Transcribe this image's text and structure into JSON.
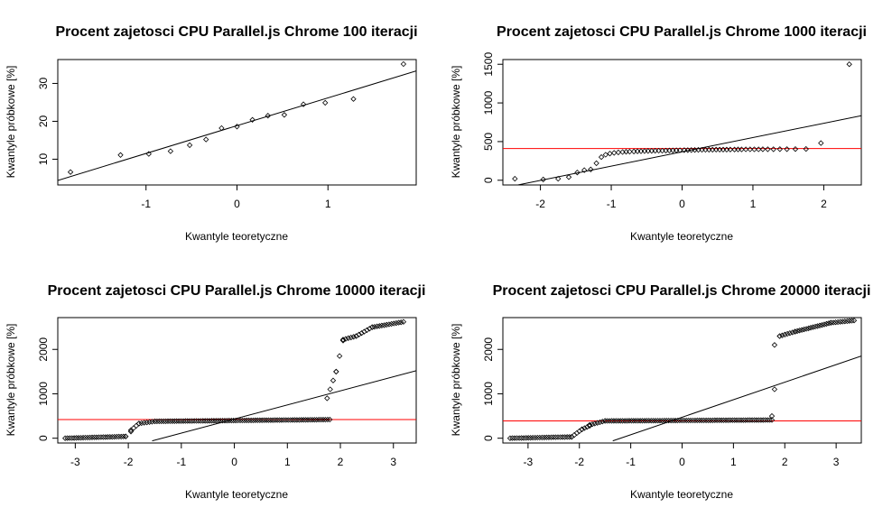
{
  "chart_data": [
    {
      "type": "scatter",
      "title": "Procent zajetosci CPU Parallel.js Chrome  100 iteracji",
      "xlabel": "Kwantyle teoretyczne",
      "ylabel": "Kwantyle próbkowe [%]",
      "xlim": [
        -1.97,
        1.97
      ],
      "ylim": [
        3.2,
        36.3
      ],
      "xticks": [
        -1,
        0,
        1
      ],
      "yticks": [
        10,
        20,
        30
      ],
      "grid": false,
      "points": [
        [
          -1.83,
          6.6
        ],
        [
          -1.28,
          11.1
        ],
        [
          -0.97,
          11.4
        ],
        [
          -0.73,
          12.1
        ],
        [
          -0.52,
          13.7
        ],
        [
          -0.34,
          15.2
        ],
        [
          -0.17,
          18.2
        ],
        [
          0.0,
          18.6
        ],
        [
          0.17,
          20.4
        ],
        [
          0.34,
          21.5
        ],
        [
          0.52,
          21.7
        ],
        [
          0.73,
          24.5
        ],
        [
          0.97,
          24.9
        ],
        [
          1.28,
          25.9
        ],
        [
          1.83,
          35.1
        ]
      ],
      "qq_line": {
        "color": "#000000",
        "points": [
          [
            -1.97,
            4.4
          ],
          [
            1.97,
            33.3
          ]
        ]
      },
      "hline": null
    },
    {
      "type": "scatter",
      "title": "Procent zajetosci CPU Parallel.js Chrome  1000 iteracji",
      "xlabel": "Kwantyle teoretyczne",
      "ylabel": "Kwantyle próbkowe [%]",
      "xlim": [
        -2.53,
        2.53
      ],
      "ylim": [
        -61,
        1561
      ],
      "xticks": [
        -2,
        -1,
        0,
        1,
        2
      ],
      "yticks": [
        0,
        500,
        1000,
        1500
      ],
      "grid": false,
      "points": [
        [
          -2.36,
          20
        ],
        [
          -1.96,
          10
        ],
        [
          -1.75,
          20
        ],
        [
          -1.6,
          40
        ],
        [
          -1.48,
          100
        ],
        [
          -1.38,
          130
        ],
        [
          -1.29,
          140
        ],
        [
          -1.21,
          220
        ],
        [
          -1.14,
          300
        ],
        [
          -1.08,
          330
        ],
        [
          -1.02,
          345
        ],
        [
          -0.96,
          355
        ],
        [
          -0.9,
          360
        ],
        [
          -0.84,
          365
        ],
        [
          -0.79,
          368
        ],
        [
          -0.74,
          370
        ],
        [
          -0.68,
          372
        ],
        [
          -0.63,
          374
        ],
        [
          -0.58,
          376
        ],
        [
          -0.53,
          378
        ],
        [
          -0.48,
          379
        ],
        [
          -0.43,
          380
        ],
        [
          -0.38,
          381
        ],
        [
          -0.33,
          382
        ],
        [
          -0.28,
          383
        ],
        [
          -0.23,
          384
        ],
        [
          -0.18,
          385
        ],
        [
          -0.13,
          386
        ],
        [
          -0.08,
          387
        ],
        [
          -0.03,
          388
        ],
        [
          0.03,
          389
        ],
        [
          0.08,
          390
        ],
        [
          0.13,
          391
        ],
        [
          0.18,
          392
        ],
        [
          0.23,
          393
        ],
        [
          0.28,
          394
        ],
        [
          0.33,
          394
        ],
        [
          0.38,
          395
        ],
        [
          0.43,
          395
        ],
        [
          0.48,
          396
        ],
        [
          0.53,
          396
        ],
        [
          0.58,
          397
        ],
        [
          0.63,
          397
        ],
        [
          0.68,
          398
        ],
        [
          0.74,
          398
        ],
        [
          0.79,
          399
        ],
        [
          0.84,
          399
        ],
        [
          0.9,
          400
        ],
        [
          0.96,
          400
        ],
        [
          1.02,
          400
        ],
        [
          1.08,
          400
        ],
        [
          1.14,
          401
        ],
        [
          1.21,
          401
        ],
        [
          1.29,
          401
        ],
        [
          1.38,
          402
        ],
        [
          1.48,
          402
        ],
        [
          1.6,
          403
        ],
        [
          1.75,
          405
        ],
        [
          1.96,
          480
        ],
        [
          2.36,
          1500
        ]
      ],
      "qq_line": {
        "color": "#000000",
        "points": [
          [
            -2.53,
            -100
          ],
          [
            2.53,
            835
          ]
        ]
      },
      "hline": {
        "value": 410,
        "color": "#ff0000"
      }
    },
    {
      "type": "scatter",
      "title": "Procent zajetosci CPU Parallel.js Chrome  10000 iteracji",
      "xlabel": "Kwantyle teoretyczne",
      "ylabel": "Kwantyle próbkowe [%]",
      "xlim": [
        -3.33,
        3.43
      ],
      "ylim": [
        -108,
        2716
      ],
      "xticks": [
        -3,
        -2,
        -1,
        0,
        1,
        2,
        3
      ],
      "yticks": [
        0,
        1000,
        2000
      ],
      "grid": false,
      "segments": [
        [
          -3.19,
          -2.05,
          0,
          40
        ],
        [
          -2.05,
          -1.95,
          40,
          150
        ],
        [
          -1.95,
          -1.8,
          180,
          330
        ],
        [
          -1.8,
          -1.5,
          330,
          380
        ],
        [
          -1.5,
          1.8,
          380,
          420
        ],
        [
          1.75,
          1.92,
          900,
          1500
        ],
        [
          1.92,
          2.05,
          1500,
          2200
        ],
        [
          2.05,
          2.3,
          2220,
          2300
        ],
        [
          2.3,
          2.6,
          2300,
          2500
        ],
        [
          2.6,
          3.19,
          2500,
          2620
        ]
      ],
      "qq_line": {
        "color": "#000000",
        "points": [
          [
            -1.55,
            -60
          ],
          [
            3.43,
            1520
          ]
        ]
      },
      "hline": {
        "value": 420,
        "color": "#ff0000"
      }
    },
    {
      "type": "scatter",
      "title": "Procent zajetosci CPU Parallel.js Chrome  20000 iteracji",
      "xlabel": "Kwantyle teoretyczne",
      "ylabel": "Kwantyle próbkowe [%]",
      "xlim": [
        -3.49,
        3.49
      ],
      "ylim": [
        -108,
        2716
      ],
      "xticks": [
        -3,
        -2,
        -1,
        0,
        1,
        2,
        3
      ],
      "yticks": [
        0,
        1000,
        2000
      ],
      "grid": false,
      "segments": [
        [
          -3.35,
          -2.15,
          0,
          30
        ],
        [
          -2.15,
          -1.95,
          30,
          200
        ],
        [
          -1.95,
          -1.8,
          200,
          280
        ],
        [
          -1.8,
          -1.5,
          300,
          390
        ],
        [
          -1.5,
          1.75,
          390,
          410
        ],
        [
          1.75,
          1.8,
          500,
          1100
        ],
        [
          1.8,
          1.9,
          2100,
          2300
        ],
        [
          1.9,
          2.2,
          2300,
          2400
        ],
        [
          2.2,
          2.9,
          2400,
          2600
        ],
        [
          2.9,
          3.35,
          2600,
          2650
        ]
      ],
      "qq_line": {
        "color": "#000000",
        "points": [
          [
            -1.35,
            -60
          ],
          [
            3.49,
            1850
          ]
        ]
      },
      "hline": {
        "value": 390,
        "color": "#ff0000"
      }
    }
  ]
}
